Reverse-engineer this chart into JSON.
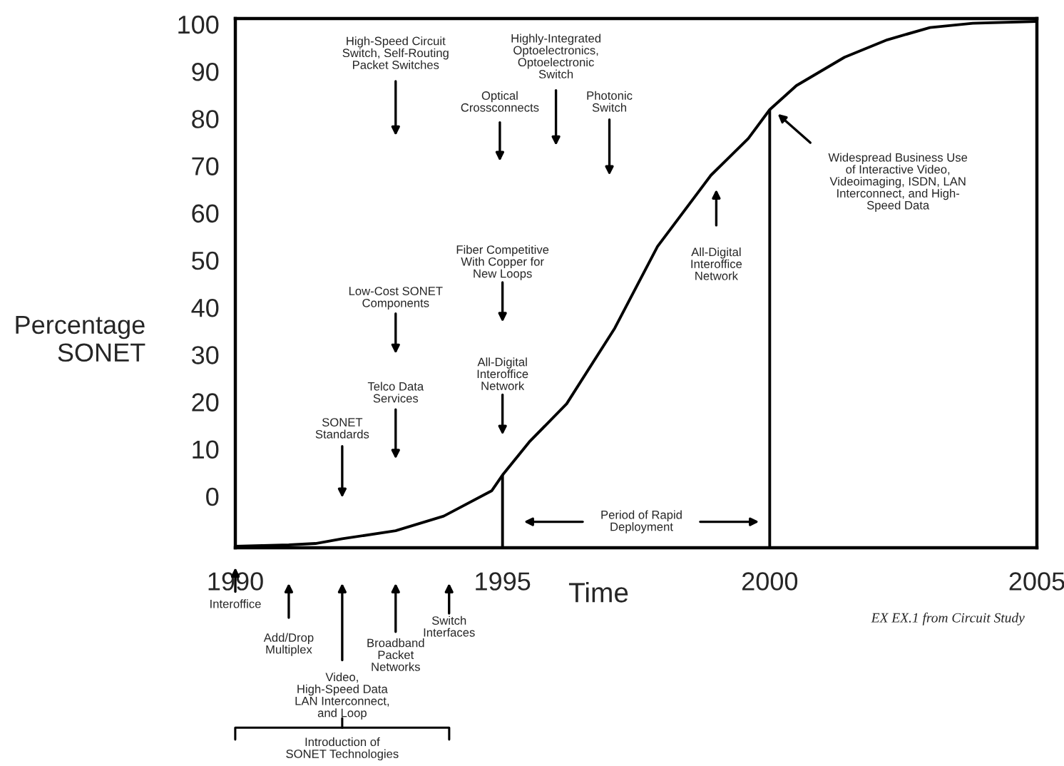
{
  "chart_data": {
    "type": "line",
    "xlabel": "Time",
    "ylabel": "Percentage\nSONET",
    "x": [
      1990,
      1991,
      1991.5,
      1992,
      1993,
      1993.9,
      1994.8,
      1995,
      1995.5,
      1996.2,
      1997.1,
      1997.9,
      1998.9,
      1999.6,
      2000,
      2000.5,
      2001.4,
      2002.2,
      2003,
      2003.8,
      2005
    ],
    "series": [
      {
        "color": "#000000",
        "values": [
          -10.6,
          -10.3,
          -10,
          -9,
          -7.3,
          -4.2,
          1.2,
          4.5,
          11.5,
          19.6,
          35.6,
          52.9,
          68,
          75.8,
          81.9,
          87,
          93,
          96.7,
          99.3,
          100.2,
          100.6
        ]
      }
    ],
    "xlim": [
      1990,
      2005
    ],
    "ylim": [
      -10.9,
      101.2
    ],
    "xticks": [
      1990,
      1995,
      2000,
      2005
    ],
    "yticks": [
      0,
      10,
      20,
      30,
      40,
      50,
      60,
      70,
      80,
      90,
      100
    ],
    "grid": false,
    "ref_lines": [
      {
        "axis": "x",
        "value": 1995,
        "label": null
      },
      {
        "axis": "x",
        "value": 2000,
        "label": null
      }
    ],
    "annotations": [
      "High-Speed Circuit\nSwitch, Self-Routing\nPacket Switches",
      "Highly-Integrated\nOptoelectronics,\nOptoelectronic\nSwitch",
      "Optical\nCrossconnects",
      "Photonic\nSwitch",
      "Fiber Competitive\nWith Copper for\nNew Loops",
      "Low-Cost SONET\nComponents",
      "All-Digital\nInteroffice\nNetwork",
      "Telco Data\nServices",
      "SONET\nStandards",
      "All-Digital\nInteroffice\nNetwork",
      "Widespread Business Use\nof Interactive Video,\nVideoimaging, ISDN, LAN\nInterconnect, and High-\nSpeed Data",
      "Period of Rapid\nDeployment",
      "Interoffice",
      "Add/Drop\nMultiplex",
      "Video,\nHigh-Speed Data\nLAN Interconnect,\nand Loop",
      "Broadband\nPacket\nNetworks",
      "Switch\nInterfaces",
      "Introduction of\nSONET Technologies",
      "EX EX.1 from Circuit Study"
    ]
  }
}
